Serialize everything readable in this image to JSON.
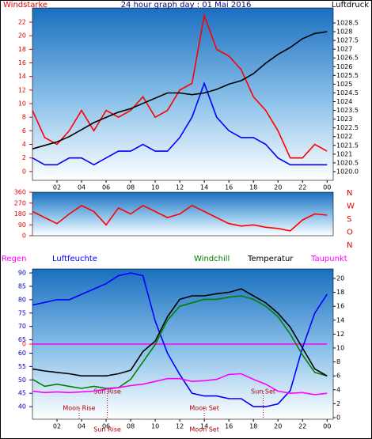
{
  "chart_data": [
    {
      "type": "line",
      "title": "24 hour graph day : 01 Mai 2016",
      "x": [
        0,
        1,
        2,
        3,
        4,
        5,
        6,
        7,
        8,
        9,
        10,
        11,
        12,
        13,
        14,
        15,
        16,
        17,
        18,
        19,
        20,
        21,
        22,
        23,
        24
      ],
      "xlim": [
        0,
        24.5
      ],
      "xticks": [
        {
          "value": 2,
          "label": "02"
        },
        {
          "value": 4,
          "label": "04"
        },
        {
          "value": 6,
          "label": "06"
        },
        {
          "value": 8,
          "label": "08"
        },
        {
          "value": 10,
          "label": "10"
        },
        12,
        14,
        16,
        18,
        20,
        22,
        {
          "value": 24,
          "label": "00"
        }
      ],
      "ylim": [
        -1.3,
        24.1
      ],
      "yticks": [
        0,
        2,
        4,
        6,
        8,
        10,
        12,
        14,
        16,
        18,
        20,
        22
      ],
      "y2lim": [
        1019.5,
        1029.36
      ],
      "y2ticks": [
        {
          "value": 1020,
          "label": "1020.0"
        },
        1020.5,
        1021,
        1021.5,
        1022,
        1022.5,
        1023,
        1023.5,
        1024,
        1024.5,
        1025,
        1025.5,
        1026,
        1026.5,
        1027,
        1027.5,
        1028,
        1028.5
      ],
      "series": [
        {
          "name": "Windstarke",
          "color": "#ff0000",
          "values": [
            9,
            5,
            4,
            6,
            9,
            6,
            9,
            8,
            9,
            11,
            8,
            9,
            12,
            13,
            23,
            18,
            17,
            15,
            11,
            9,
            6,
            2,
            2,
            4,
            3
          ]
        },
        {
          "color": "#0000ff",
          "values": [
            2,
            1,
            1,
            2,
            2,
            1,
            2,
            3,
            3,
            4,
            3,
            3,
            5,
            8,
            13,
            8,
            6,
            5,
            5,
            4,
            2,
            1,
            1,
            1,
            1
          ]
        },
        {
          "name": "Luftdruck",
          "color": "#000000",
          "axis": "y2",
          "values": [
            1021.3,
            1021.5,
            1021.7,
            1022.0,
            1022.4,
            1022.8,
            1023.1,
            1023.4,
            1023.6,
            1023.9,
            1024.2,
            1024.5,
            1024.5,
            1024.4,
            1024.5,
            1024.7,
            1025.0,
            1025.2,
            1025.6,
            1026.2,
            1026.7,
            1027.1,
            1027.6,
            1027.9,
            1028.0
          ]
        }
      ]
    },
    {
      "type": "line",
      "x": [
        0,
        1,
        2,
        3,
        4,
        5,
        6,
        7,
        8,
        9,
        10,
        11,
        12,
        13,
        14,
        15,
        16,
        17,
        18,
        19,
        20,
        21,
        22,
        23,
        24
      ],
      "xlim": [
        0,
        24.5
      ],
      "ylim": [
        0,
        360
      ],
      "yticks": [
        0,
        90,
        180,
        270,
        360
      ],
      "y2lim": [
        0,
        360
      ],
      "y2ticks": [
        {
          "value": 360,
          "label": "N"
        },
        {
          "value": 270,
          "label": "W"
        },
        {
          "value": 180,
          "label": "S"
        },
        {
          "value": 90,
          "label": "O"
        },
        {
          "value": 0,
          "label": "N"
        }
      ],
      "series": [
        {
          "color": "#ff0000",
          "values": [
            200,
            150,
            100,
            180,
            250,
            200,
            90,
            230,
            180,
            250,
            200,
            150,
            180,
            250,
            200,
            150,
            100,
            80,
            90,
            70,
            60,
            40,
            130,
            180,
            170
          ]
        }
      ]
    },
    {
      "type": "line",
      "x": [
        0,
        1,
        2,
        3,
        4,
        5,
        6,
        7,
        8,
        9,
        10,
        11,
        12,
        13,
        14,
        15,
        16,
        17,
        18,
        19,
        20,
        21,
        22,
        23,
        24
      ],
      "xlim": [
        0,
        24.5
      ],
      "xticks": [
        {
          "value": 2,
          "label": "02"
        },
        {
          "value": 4,
          "label": "04"
        },
        {
          "value": 6,
          "label": "06"
        },
        {
          "value": 8,
          "label": "08"
        },
        {
          "value": 10,
          "label": "10"
        },
        12,
        14,
        16,
        18,
        20,
        22,
        {
          "value": 24,
          "label": "00"
        }
      ],
      "ylim": [
        35.3,
        91.5
      ],
      "yticks": [
        40,
        45,
        50,
        55,
        60,
        65,
        70,
        75,
        80,
        85,
        90
      ],
      "y2lim": [
        -0.23,
        21.36
      ],
      "y2ticks": [
        0,
        2,
        4,
        6,
        8,
        10,
        12,
        14,
        16,
        18,
        20
      ],
      "y3lim": [
        -6,
        6
      ],
      "y3ticks": [
        0
      ],
      "series": [
        {
          "name": "Regen",
          "color": "#ff00ff",
          "axis": "y3",
          "values": [
            0,
            0,
            0,
            0,
            0,
            0,
            0,
            0,
            0,
            0,
            0,
            0,
            0,
            0,
            0,
            0,
            0,
            0,
            0,
            0,
            0,
            0,
            0,
            0,
            0
          ]
        },
        {
          "name": "Luftfeuchte",
          "color": "#0000ff",
          "values": [
            78,
            79,
            80,
            80,
            82,
            84,
            86,
            89,
            90,
            89,
            72,
            60,
            52,
            45,
            44,
            44,
            43,
            43,
            40,
            40,
            41,
            46,
            62,
            75,
            82
          ]
        },
        {
          "name": "Windchill",
          "color": "#008000",
          "axis": "y2",
          "values": [
            5.5,
            4.5,
            4.8,
            4.5,
            4.2,
            4.5,
            4.2,
            4.3,
            5.5,
            8,
            10.5,
            14,
            16,
            16.5,
            17,
            17,
            17.3,
            17.5,
            17,
            16,
            14.5,
            12,
            9,
            6.5,
            6
          ]
        },
        {
          "name": "Temperatur",
          "color": "#000000",
          "axis": "y2",
          "values": [
            7,
            6.7,
            6.5,
            6.3,
            6,
            6,
            6,
            6.3,
            6.8,
            9.5,
            11,
            14.5,
            17,
            17.5,
            17.5,
            17.8,
            18,
            18.5,
            17.5,
            16.5,
            15,
            13,
            10,
            7,
            6
          ]
        },
        {
          "name": "Taupunkt",
          "color": "#ff00ff",
          "axis": "y2",
          "values": [
            3.8,
            3.6,
            3.7,
            3.6,
            3.7,
            3.8,
            4.1,
            4.3,
            4.6,
            4.8,
            5.2,
            5.6,
            5.6,
            5.2,
            5.3,
            5.5,
            6.2,
            6.3,
            5.5,
            4.8,
            3.8,
            3.5,
            3.6,
            3.3,
            3.5
          ]
        }
      ],
      "annotations": [
        {
          "text": "Sun Rise",
          "x": 6.1
        },
        {
          "text": "Moon Rise",
          "x": 3.8
        },
        {
          "text": "Moon Set",
          "x": 14
        },
        {
          "text": "Sun Set",
          "x": 18.8
        }
      ],
      "axis_events": [
        {
          "text": "Sun Rise",
          "x": 6.1
        },
        {
          "text": "Moon Set",
          "x": 14
        }
      ]
    }
  ]
}
